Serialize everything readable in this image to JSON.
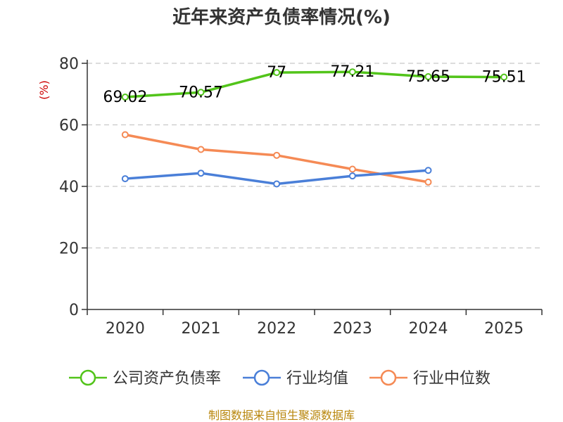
{
  "chart_data": {
    "type": "line",
    "title": "近年来资产负债率情况(%)",
    "y_unit": "(%)",
    "categories": [
      "2020",
      "2021",
      "2022",
      "2023",
      "2024",
      "2025"
    ],
    "ylim": [
      0,
      80
    ],
    "yticks": [
      "0",
      "20",
      "40",
      "60",
      "80"
    ],
    "grid": true,
    "legend_position": "bottom",
    "series": [
      {
        "name": "公司资产负债率",
        "color": "#52c41a",
        "values": [
          69.02,
          70.57,
          77,
          77.21,
          75.65,
          75.51
        ],
        "labels": [
          "69.02",
          "70.57",
          "77",
          "77.21",
          "75.65",
          "75.51"
        ]
      },
      {
        "name": "行业均值",
        "color": "#4a7fd8",
        "values": [
          42.5,
          44.3,
          40.8,
          43.4,
          45.2,
          null
        ]
      },
      {
        "name": "行业中位数",
        "color": "#f58a55",
        "values": [
          56.8,
          52.0,
          50.1,
          45.6,
          41.4,
          null
        ]
      }
    ]
  },
  "footer": {
    "source": "制图数据来自恒生聚源数据库"
  }
}
